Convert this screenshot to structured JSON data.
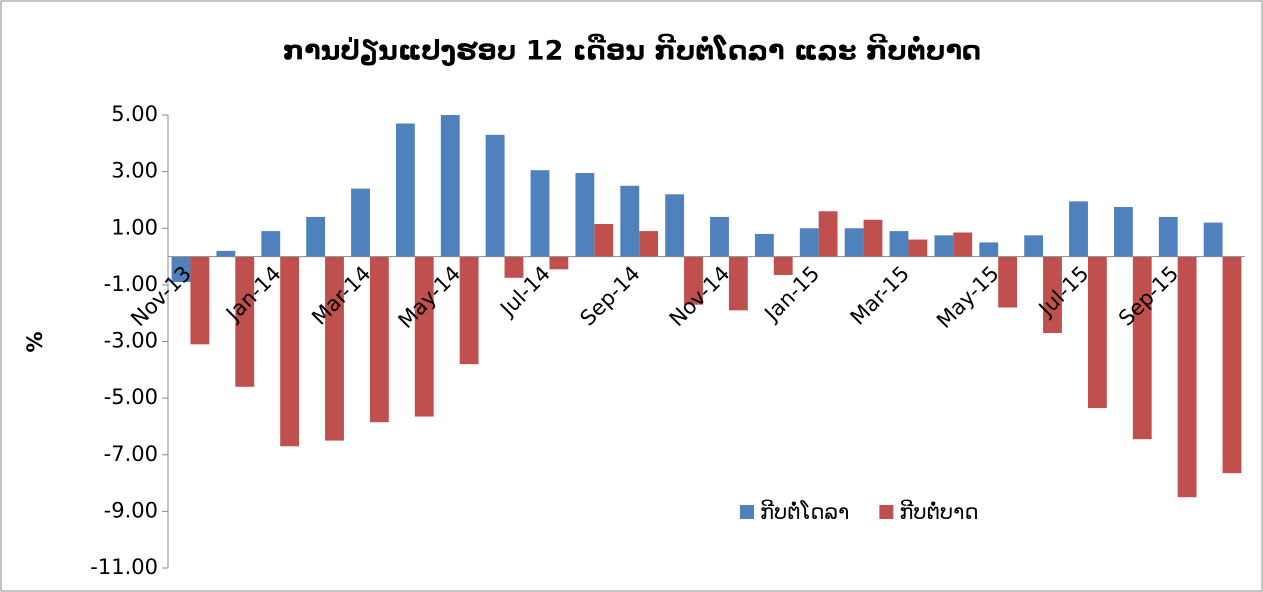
{
  "chart_data": {
    "type": "bar",
    "title": "ການປ່ຽນແປງຮອບ 12 ເດືອນ ກີບຕໍ່ໂດລາ ແລະ ກີບຕໍ່ບາດ",
    "y_label": "%",
    "categories": [
      "Nov-13",
      null,
      "Jan-14",
      null,
      "Mar-14",
      null,
      "May-14",
      null,
      "Jul-14",
      null,
      "Sep-14",
      null,
      "Nov-14",
      null,
      "Jan-15",
      null,
      "Mar-15",
      null,
      "May-15",
      null,
      "Jul-15",
      null,
      "Sep-15",
      null
    ],
    "series": [
      {
        "name": "ກີບຕໍ່ໂດລາ",
        "color": "#4f81bd",
        "values": [
          -0.9,
          0.2,
          0.9,
          1.4,
          2.4,
          4.7,
          5.0,
          4.3,
          3.05,
          2.95,
          2.5,
          2.2,
          1.4,
          0.8,
          1.0,
          1.0,
          0.9,
          0.75,
          0.5,
          0.75,
          1.95,
          1.75,
          1.4,
          1.2
        ]
      },
      {
        "name": "ກີບຕໍ່ບາດ",
        "color": "#c0504d",
        "values": [
          -3.1,
          -4.6,
          -6.7,
          -6.5,
          -5.85,
          -5.65,
          -3.8,
          -0.75,
          -0.45,
          1.15,
          0.9,
          -1.7,
          -1.9,
          -0.65,
          1.6,
          1.3,
          0.6,
          0.85,
          -1.8,
          -2.7,
          -5.35,
          -6.45,
          -8.5,
          -7.65
        ]
      }
    ],
    "ylim": [
      -11,
      5
    ],
    "yticks": [
      {
        "value": -11,
        "label": "-11.00"
      },
      {
        "value": -9,
        "label": "-9.00"
      },
      {
        "value": -7,
        "label": "-7.00"
      },
      {
        "value": -5,
        "label": "-5.00"
      },
      {
        "value": -3,
        "label": "-3.00"
      },
      {
        "value": -1,
        "label": "-1.00"
      },
      {
        "value": 1,
        "label": "1.00"
      },
      {
        "value": 3,
        "label": "3.00"
      },
      {
        "value": 5,
        "label": "5.00"
      }
    ],
    "grid": false,
    "legend": "bottom"
  }
}
